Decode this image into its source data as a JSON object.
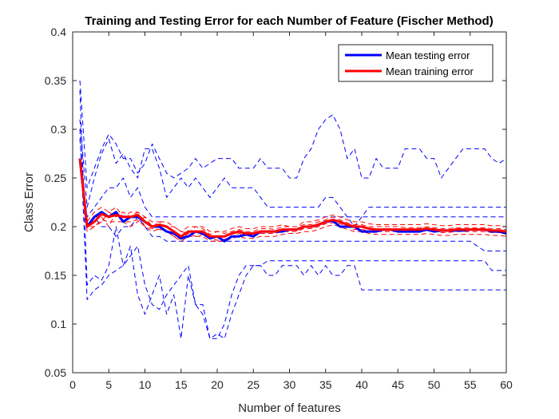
{
  "chart_data": {
    "type": "line",
    "title": "Training and Testing Error for each Number of Feature (Fischer Method)",
    "xlabel": "Number of features",
    "ylabel": "Class Error",
    "xlim": [
      0,
      60
    ],
    "ylim": [
      0.05,
      0.4
    ],
    "xticks": [
      0,
      5,
      10,
      15,
      20,
      25,
      30,
      35,
      40,
      45,
      50,
      55,
      60
    ],
    "yticks": [
      0.05,
      0.1,
      0.15,
      0.2,
      0.25,
      0.3,
      0.35,
      0.4
    ],
    "ytick_labels": [
      "0.05",
      "0.1",
      "0.15",
      "0.2",
      "0.25",
      "0.3",
      "0.35",
      "0.4"
    ],
    "grid": false,
    "legend_position": "top-right",
    "legend": [
      {
        "label": "Mean testing error",
        "color": "#0000ff"
      },
      {
        "label": "Mean training error",
        "color": "#ff0000"
      }
    ],
    "x": [
      1,
      2,
      3,
      4,
      5,
      6,
      7,
      8,
      9,
      10,
      11,
      12,
      13,
      14,
      15,
      16,
      17,
      18,
      19,
      20,
      21,
      22,
      23,
      24,
      25,
      26,
      27,
      28,
      29,
      30,
      31,
      32,
      33,
      34,
      35,
      36,
      37,
      38,
      39,
      40,
      41,
      42,
      43,
      44,
      45,
      46,
      47,
      48,
      49,
      50,
      51,
      52,
      53,
      54,
      55,
      56,
      57,
      58,
      59,
      60
    ],
    "series": [
      {
        "name": "Mean testing error",
        "color": "#0000ff",
        "style": "solid",
        "width": 3,
        "values": [
          0.27,
          0.2,
          0.21,
          0.215,
          0.21,
          0.215,
          0.205,
          0.21,
          0.21,
          0.205,
          0.2,
          0.2,
          0.195,
          0.193,
          0.188,
          0.19,
          0.195,
          0.193,
          0.188,
          0.19,
          0.185,
          0.19,
          0.19,
          0.192,
          0.19,
          0.195,
          0.195,
          0.195,
          0.195,
          0.197,
          0.197,
          0.2,
          0.2,
          0.202,
          0.205,
          0.206,
          0.2,
          0.2,
          0.2,
          0.195,
          0.195,
          0.195,
          0.197,
          0.197,
          0.195,
          0.195,
          0.195,
          0.195,
          0.197,
          0.195,
          0.196,
          0.196,
          0.196,
          0.196,
          0.197,
          0.197,
          0.197,
          0.195,
          0.195,
          0.193
        ]
      },
      {
        "name": "Mean training error",
        "color": "#ff0000",
        "style": "solid",
        "width": 3,
        "values": [
          0.27,
          0.2,
          0.205,
          0.213,
          0.21,
          0.212,
          0.21,
          0.21,
          0.212,
          0.205,
          0.2,
          0.202,
          0.2,
          0.195,
          0.19,
          0.195,
          0.195,
          0.195,
          0.19,
          0.19,
          0.19,
          0.193,
          0.195,
          0.193,
          0.193,
          0.195,
          0.195,
          0.195,
          0.197,
          0.197,
          0.197,
          0.2,
          0.2,
          0.202,
          0.205,
          0.207,
          0.205,
          0.202,
          0.2,
          0.2,
          0.198,
          0.197,
          0.197,
          0.197,
          0.197,
          0.197,
          0.197,
          0.197,
          0.198,
          0.197,
          0.196,
          0.196,
          0.197,
          0.197,
          0.197,
          0.197,
          0.197,
          0.196,
          0.196,
          0.195
        ]
      },
      {
        "color": "#0000ff",
        "style": "dashed",
        "width": 1,
        "values": [
          0.35,
          0.24,
          0.26,
          0.28,
          0.295,
          0.285,
          0.27,
          0.27,
          0.255,
          0.265,
          0.285,
          0.27,
          0.255,
          0.25,
          0.255,
          0.26,
          0.27,
          0.26,
          0.265,
          0.27,
          0.27,
          0.27,
          0.26,
          0.26,
          0.26,
          0.27,
          0.26,
          0.26,
          0.26,
          0.25,
          0.25,
          0.27,
          0.28,
          0.3,
          0.31,
          0.315,
          0.3,
          0.27,
          0.28,
          0.25,
          0.25,
          0.27,
          0.26,
          0.26,
          0.26,
          0.28,
          0.28,
          0.28,
          0.27,
          0.27,
          0.25,
          0.26,
          0.27,
          0.28,
          0.28,
          0.28,
          0.28,
          0.27,
          0.265,
          0.27
        ]
      },
      {
        "color": "#0000ff",
        "style": "dashed",
        "width": 1,
        "values": [
          0.31,
          0.22,
          0.25,
          0.275,
          0.29,
          0.265,
          0.275,
          0.26,
          0.25,
          0.28,
          0.28,
          0.26,
          0.23,
          0.24,
          0.25,
          0.24,
          0.25,
          0.24,
          0.23,
          0.24,
          0.25,
          0.24,
          0.24,
          0.24,
          0.24,
          0.23,
          0.22,
          0.22,
          0.22,
          0.22,
          0.22,
          0.22,
          0.22,
          0.22,
          0.23,
          0.23,
          0.22,
          0.21,
          0.2,
          0.21,
          0.22,
          0.22,
          0.22,
          0.22,
          0.22,
          0.22,
          0.22,
          0.22,
          0.22,
          0.22,
          0.22,
          0.22,
          0.22,
          0.22,
          0.22,
          0.22,
          0.22,
          0.22,
          0.22,
          0.22
        ]
      },
      {
        "color": "#0000ff",
        "style": "dashed",
        "width": 1,
        "values": [
          0.34,
          0.14,
          0.15,
          0.145,
          0.16,
          0.2,
          0.16,
          0.18,
          0.13,
          0.11,
          0.13,
          0.15,
          0.11,
          0.13,
          0.085,
          0.15,
          0.12,
          0.12,
          0.085,
          0.085,
          0.1,
          0.13,
          0.15,
          0.16,
          0.16,
          0.16,
          0.15,
          0.15,
          0.16,
          0.16,
          0.16,
          0.15,
          0.16,
          0.15,
          0.16,
          0.15,
          0.15,
          0.16,
          0.16,
          0.135,
          0.135,
          0.135,
          0.135,
          0.135,
          0.135,
          0.135,
          0.135,
          0.135,
          0.135,
          0.135,
          0.135,
          0.135,
          0.135,
          0.135,
          0.135,
          0.135,
          0.135,
          0.135,
          0.135,
          0.135
        ]
      },
      {
        "color": "#0000ff",
        "style": "dashed",
        "width": 1,
        "values": [
          0.3,
          0.125,
          0.135,
          0.14,
          0.15,
          0.155,
          0.16,
          0.17,
          0.18,
          0.14,
          0.12,
          0.115,
          0.13,
          0.14,
          0.15,
          0.16,
          0.12,
          0.11,
          0.085,
          0.09,
          0.085,
          0.11,
          0.13,
          0.15,
          0.16,
          0.16,
          0.165,
          0.165,
          0.165,
          0.165,
          0.165,
          0.165,
          0.165,
          0.165,
          0.165,
          0.165,
          0.165,
          0.165,
          0.165,
          0.165,
          0.165,
          0.165,
          0.165,
          0.165,
          0.165,
          0.165,
          0.165,
          0.165,
          0.165,
          0.165,
          0.165,
          0.165,
          0.165,
          0.165,
          0.165,
          0.165,
          0.165,
          0.155,
          0.155,
          0.155
        ]
      },
      {
        "color": "#0000ff",
        "style": "dashed",
        "width": 1,
        "values": [
          0.29,
          0.2,
          0.21,
          0.2,
          0.2,
          0.19,
          0.2,
          0.2,
          0.21,
          0.2,
          0.19,
          0.19,
          0.185,
          0.185,
          0.185,
          0.185,
          0.185,
          0.185,
          0.185,
          0.185,
          0.185,
          0.185,
          0.185,
          0.185,
          0.185,
          0.185,
          0.185,
          0.185,
          0.185,
          0.185,
          0.185,
          0.185,
          0.185,
          0.185,
          0.185,
          0.185,
          0.185,
          0.185,
          0.185,
          0.185,
          0.185,
          0.185,
          0.185,
          0.185,
          0.185,
          0.185,
          0.185,
          0.185,
          0.185,
          0.185,
          0.185,
          0.185,
          0.185,
          0.185,
          0.185,
          0.18,
          0.175,
          0.175,
          0.175,
          0.175
        ]
      },
      {
        "color": "#0000ff",
        "style": "dashed",
        "width": 1,
        "values": [
          0.27,
          0.21,
          0.22,
          0.23,
          0.24,
          0.24,
          0.25,
          0.23,
          0.24,
          0.22,
          0.21,
          0.21,
          0.21,
          0.21,
          0.21,
          0.21,
          0.21,
          0.21,
          0.21,
          0.21,
          0.21,
          0.21,
          0.21,
          0.21,
          0.21,
          0.21,
          0.21,
          0.21,
          0.21,
          0.21,
          0.21,
          0.21,
          0.21,
          0.21,
          0.21,
          0.21,
          0.21,
          0.21,
          0.21,
          0.21,
          0.21,
          0.21,
          0.21,
          0.21,
          0.21,
          0.21,
          0.21,
          0.21,
          0.21,
          0.21,
          0.21,
          0.21,
          0.21,
          0.21,
          0.21,
          0.21,
          0.21,
          0.21,
          0.21,
          0.21
        ]
      },
      {
        "color": "#ff0000",
        "style": "dashed",
        "width": 1,
        "values": [
          0.27,
          0.205,
          0.215,
          0.22,
          0.215,
          0.22,
          0.21,
          0.215,
          0.215,
          0.21,
          0.205,
          0.205,
          0.2,
          0.2,
          0.195,
          0.2,
          0.2,
          0.2,
          0.195,
          0.195,
          0.195,
          0.198,
          0.2,
          0.198,
          0.198,
          0.2,
          0.2,
          0.2,
          0.202,
          0.2,
          0.2,
          0.205,
          0.205,
          0.207,
          0.21,
          0.212,
          0.21,
          0.207,
          0.205,
          0.205,
          0.203,
          0.202,
          0.202,
          0.202,
          0.202,
          0.202,
          0.202,
          0.202,
          0.203,
          0.202,
          0.201,
          0.201,
          0.202,
          0.202,
          0.202,
          0.202,
          0.202,
          0.201,
          0.201,
          0.2
        ]
      },
      {
        "color": "#ff0000",
        "style": "dashed",
        "width": 1,
        "values": [
          0.265,
          0.195,
          0.2,
          0.207,
          0.205,
          0.205,
          0.205,
          0.205,
          0.207,
          0.2,
          0.195,
          0.198,
          0.195,
          0.19,
          0.185,
          0.19,
          0.19,
          0.19,
          0.185,
          0.185,
          0.185,
          0.188,
          0.19,
          0.188,
          0.188,
          0.19,
          0.19,
          0.19,
          0.192,
          0.193,
          0.193,
          0.195,
          0.195,
          0.197,
          0.2,
          0.202,
          0.2,
          0.197,
          0.195,
          0.195,
          0.193,
          0.192,
          0.192,
          0.192,
          0.192,
          0.192,
          0.192,
          0.192,
          0.193,
          0.192,
          0.191,
          0.191,
          0.192,
          0.192,
          0.192,
          0.192,
          0.192,
          0.191,
          0.191,
          0.19
        ]
      },
      {
        "color": "#ff0000",
        "style": "dashed",
        "width": 1,
        "values": [
          0.27,
          0.2,
          0.21,
          0.21,
          0.2,
          0.215,
          0.205,
          0.2,
          0.205,
          0.21,
          0.2,
          0.205,
          0.205,
          0.2,
          0.195,
          0.193,
          0.2,
          0.198,
          0.192,
          0.195,
          0.193,
          0.195,
          0.197,
          0.195,
          0.195,
          0.198,
          0.198,
          0.197,
          0.2,
          0.2,
          0.2,
          0.202,
          0.202,
          0.205,
          0.207,
          0.21,
          0.207,
          0.204,
          0.202,
          0.202,
          0.2,
          0.2,
          0.2,
          0.2,
          0.2,
          0.199,
          0.199,
          0.199,
          0.2,
          0.199,
          0.198,
          0.198,
          0.199,
          0.199,
          0.199,
          0.199,
          0.199,
          0.198,
          0.198,
          0.197
        ]
      },
      {
        "color": "#ff0000",
        "style": "dashed",
        "width": 1,
        "values": [
          0.27,
          0.2,
          0.2,
          0.205,
          0.215,
          0.21,
          0.215,
          0.21,
          0.215,
          0.2,
          0.198,
          0.197,
          0.195,
          0.19,
          0.187,
          0.193,
          0.19,
          0.192,
          0.188,
          0.186,
          0.187,
          0.19,
          0.193,
          0.191,
          0.191,
          0.193,
          0.193,
          0.193,
          0.195,
          0.195,
          0.195,
          0.198,
          0.198,
          0.2,
          0.203,
          0.204,
          0.203,
          0.2,
          0.197,
          0.197,
          0.196,
          0.195,
          0.195,
          0.195,
          0.195,
          0.195,
          0.195,
          0.195,
          0.196,
          0.195,
          0.194,
          0.194,
          0.195,
          0.195,
          0.195,
          0.195,
          0.195,
          0.194,
          0.194,
          0.193
        ]
      }
    ]
  }
}
